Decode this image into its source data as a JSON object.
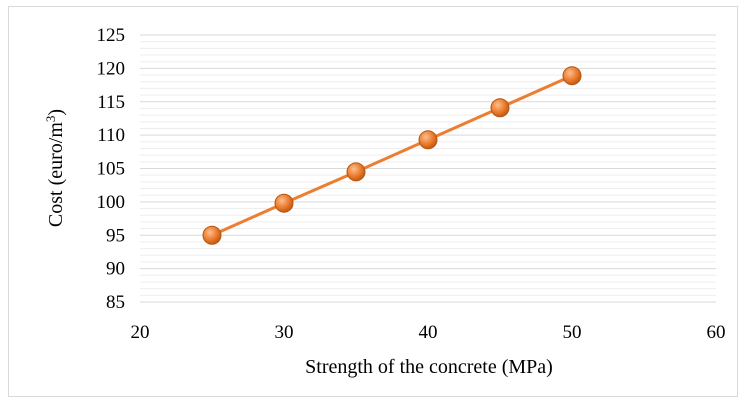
{
  "chart_data": {
    "type": "scatter",
    "xlabel": "Strength of the concrete (MPa)",
    "ylabel_main": "Cost (euro/m",
    "ylabel_sup": "3",
    "ylabel_close": ")",
    "xlim": [
      20,
      60
    ],
    "ylim": [
      85,
      125
    ],
    "x_ticks": [
      20,
      30,
      40,
      50,
      60
    ],
    "y_ticks": [
      85,
      90,
      95,
      100,
      105,
      110,
      115,
      120,
      125
    ],
    "grid": true,
    "minor_grid": true,
    "series": [
      {
        "x": [
          25,
          30,
          35,
          40,
          45,
          50
        ],
        "y": [
          95.0,
          99.8,
          104.5,
          109.3,
          114.1,
          118.9
        ],
        "marker": "sphere",
        "line": true
      }
    ],
    "colors": {
      "series": "#ED7D31",
      "marker_dark": "#B8560F",
      "marker_light": "#FBC08F",
      "grid_major": "#d9d9d9",
      "grid_minor": "#eeeeee"
    }
  }
}
